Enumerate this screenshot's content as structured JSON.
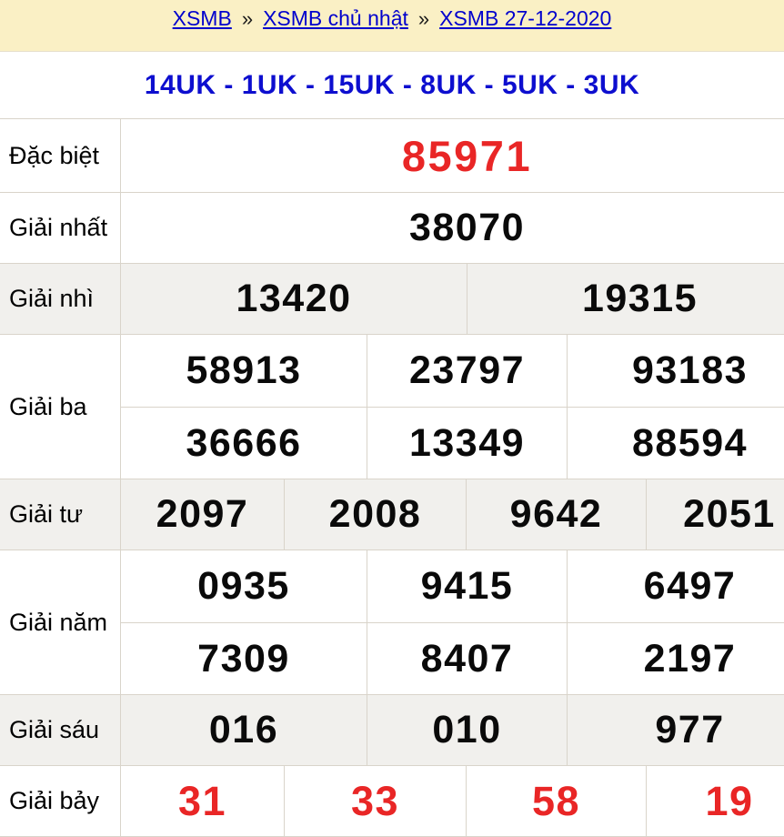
{
  "breadcrumb": {
    "separator": "»",
    "items": [
      {
        "label": "XSMB"
      },
      {
        "label": "XSMB chủ nhật"
      },
      {
        "label": "XSMB 27-12-2020"
      }
    ]
  },
  "loto_line": {
    "codes": [
      "14UK",
      "1UK",
      "15UK",
      "8UK",
      "5UK",
      "3UK"
    ],
    "separator": " - "
  },
  "results": {
    "rows": [
      {
        "label": "Đặc biệt",
        "red": true,
        "size": "special",
        "lines": [
          [
            "85971"
          ]
        ]
      },
      {
        "label": "Giải nhất",
        "red": false,
        "size": "normal",
        "lines": [
          [
            "38070"
          ]
        ]
      },
      {
        "label": "Giải nhì",
        "red": false,
        "size": "normal",
        "lines": [
          [
            "13420",
            "19315"
          ]
        ]
      },
      {
        "label": "Giải ba",
        "red": false,
        "size": "normal",
        "lines": [
          [
            "58913",
            "23797",
            "93183"
          ],
          [
            "36666",
            "13349",
            "88594"
          ]
        ]
      },
      {
        "label": "Giải tư",
        "red": false,
        "size": "normal",
        "lines": [
          [
            "2097",
            "2008",
            "9642",
            "2051"
          ]
        ]
      },
      {
        "label": "Giải năm",
        "red": false,
        "size": "normal",
        "lines": [
          [
            "0935",
            "9415",
            "6497"
          ],
          [
            "7309",
            "8407",
            "2197"
          ]
        ]
      },
      {
        "label": "Giải sáu",
        "red": false,
        "size": "normal",
        "lines": [
          [
            "016",
            "010",
            "977"
          ]
        ]
      },
      {
        "label": "Giải bảy",
        "red": true,
        "size": "seven",
        "lines": [
          [
            "31",
            "33",
            "58",
            "19"
          ]
        ]
      }
    ]
  },
  "colors": {
    "header_bg": "#faf0c5",
    "link_blue": "#0000cd",
    "code_blue": "#0d0ecf",
    "accent_red": "#e92626",
    "shaded_row_bg": "#f1f0ed",
    "border": "#d9d4ca"
  }
}
